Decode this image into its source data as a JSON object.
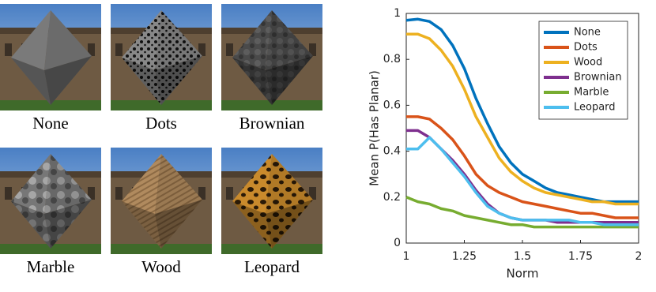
{
  "image_captions": [
    "None",
    "Dots",
    "Brownian",
    "Marble",
    "Wood",
    "Leopard"
  ],
  "chart_data": {
    "type": "line",
    "x_label": "Norm",
    "y_label": "Mean P(Has Planar)",
    "x": [
      1,
      1.05,
      1.1,
      1.15,
      1.2,
      1.25,
      1.3,
      1.35,
      1.4,
      1.45,
      1.5,
      1.55,
      1.6,
      1.65,
      1.7,
      1.75,
      1.8,
      1.85,
      1.9,
      1.95,
      2
    ],
    "xlim": [
      1,
      2
    ],
    "xticks": [
      1,
      1.25,
      1.5,
      1.75,
      2
    ],
    "ylim": [
      0,
      1
    ],
    "yticks": [
      0,
      0.2,
      0.4,
      0.6,
      0.8,
      1
    ],
    "legend": "upper right",
    "series": [
      {
        "name": "None",
        "color": "#0072bd",
        "values": [
          0.97,
          0.975,
          0.965,
          0.93,
          0.86,
          0.76,
          0.63,
          0.52,
          0.42,
          0.35,
          0.3,
          0.27,
          0.24,
          0.22,
          0.21,
          0.2,
          0.19,
          0.18,
          0.18,
          0.18,
          0.18
        ]
      },
      {
        "name": "Dots",
        "color": "#d95319",
        "values": [
          0.55,
          0.55,
          0.54,
          0.5,
          0.45,
          0.38,
          0.3,
          0.25,
          0.22,
          0.2,
          0.18,
          0.17,
          0.16,
          0.15,
          0.14,
          0.13,
          0.13,
          0.12,
          0.11,
          0.11,
          0.11
        ]
      },
      {
        "name": "Wood",
        "color": "#edb120",
        "values": [
          0.91,
          0.91,
          0.89,
          0.84,
          0.77,
          0.67,
          0.55,
          0.46,
          0.37,
          0.31,
          0.27,
          0.24,
          0.22,
          0.21,
          0.2,
          0.19,
          0.18,
          0.18,
          0.17,
          0.17,
          0.17
        ]
      },
      {
        "name": "Brownian",
        "color": "#7e2f8e",
        "values": [
          0.49,
          0.49,
          0.46,
          0.41,
          0.36,
          0.3,
          0.23,
          0.17,
          0.13,
          0.11,
          0.1,
          0.1,
          0.1,
          0.09,
          0.09,
          0.09,
          0.09,
          0.09,
          0.09,
          0.09,
          0.09
        ]
      },
      {
        "name": "Marble",
        "color": "#77ac30",
        "values": [
          0.2,
          0.18,
          0.17,
          0.15,
          0.14,
          0.12,
          0.11,
          0.1,
          0.09,
          0.08,
          0.08,
          0.07,
          0.07,
          0.07,
          0.07,
          0.07,
          0.07,
          0.07,
          0.07,
          0.07,
          0.07
        ]
      },
      {
        "name": "Leopard",
        "color": "#4dbeee",
        "values": [
          0.41,
          0.41,
          0.46,
          0.41,
          0.35,
          0.29,
          0.22,
          0.16,
          0.13,
          0.11,
          0.1,
          0.1,
          0.1,
          0.1,
          0.1,
          0.09,
          0.09,
          0.08,
          0.08,
          0.08,
          0.08
        ]
      }
    ]
  }
}
